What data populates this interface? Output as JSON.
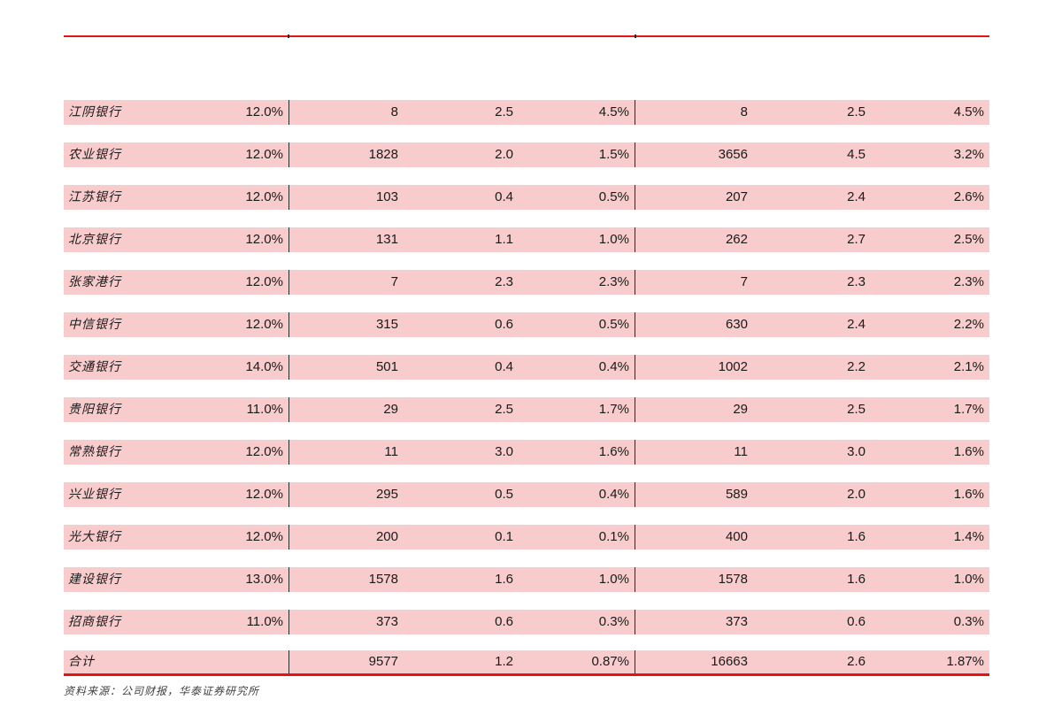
{
  "table": {
    "accent_rule_color": "#e21414",
    "row_background_color": "#f8cbcd",
    "divider_color": "#2b2b2b",
    "rows": [
      {
        "name": "江阴银行",
        "pct": "12.0%",
        "v1": "8",
        "v2": "2.5",
        "v3": "4.5%",
        "v4": "8",
        "v5": "2.5",
        "v6": "4.5%"
      },
      {
        "name": "农业银行",
        "pct": "12.0%",
        "v1": "1828",
        "v2": "2.0",
        "v3": "1.5%",
        "v4": "3656",
        "v5": "4.5",
        "v6": "3.2%"
      },
      {
        "name": "江苏银行",
        "pct": "12.0%",
        "v1": "103",
        "v2": "0.4",
        "v3": "0.5%",
        "v4": "207",
        "v5": "2.4",
        "v6": "2.6%"
      },
      {
        "name": "北京银行",
        "pct": "12.0%",
        "v1": "131",
        "v2": "1.1",
        "v3": "1.0%",
        "v4": "262",
        "v5": "2.7",
        "v6": "2.5%"
      },
      {
        "name": "张家港行",
        "pct": "12.0%",
        "v1": "7",
        "v2": "2.3",
        "v3": "2.3%",
        "v4": "7",
        "v5": "2.3",
        "v6": "2.3%"
      },
      {
        "name": "中信银行",
        "pct": "12.0%",
        "v1": "315",
        "v2": "0.6",
        "v3": "0.5%",
        "v4": "630",
        "v5": "2.4",
        "v6": "2.2%"
      },
      {
        "name": "交通银行",
        "pct": "14.0%",
        "v1": "501",
        "v2": "0.4",
        "v3": "0.4%",
        "v4": "1002",
        "v5": "2.2",
        "v6": "2.1%"
      },
      {
        "name": "贵阳银行",
        "pct": "11.0%",
        "v1": "29",
        "v2": "2.5",
        "v3": "1.7%",
        "v4": "29",
        "v5": "2.5",
        "v6": "1.7%"
      },
      {
        "name": "常熟银行",
        "pct": "12.0%",
        "v1": "11",
        "v2": "3.0",
        "v3": "1.6%",
        "v4": "11",
        "v5": "3.0",
        "v6": "1.6%"
      },
      {
        "name": "兴业银行",
        "pct": "12.0%",
        "v1": "295",
        "v2": "0.5",
        "v3": "0.4%",
        "v4": "589",
        "v5": "2.0",
        "v6": "1.6%"
      },
      {
        "name": "光大银行",
        "pct": "12.0%",
        "v1": "200",
        "v2": "0.1",
        "v3": "0.1%",
        "v4": "400",
        "v5": "1.6",
        "v6": "1.4%"
      },
      {
        "name": "建设银行",
        "pct": "13.0%",
        "v1": "1578",
        "v2": "1.6",
        "v3": "1.0%",
        "v4": "1578",
        "v5": "1.6",
        "v6": "1.0%"
      },
      {
        "name": "招商银行",
        "pct": "11.0%",
        "v1": "373",
        "v2": "0.6",
        "v3": "0.3%",
        "v4": "373",
        "v5": "0.6",
        "v6": "0.3%"
      },
      {
        "name": "合计",
        "pct": "",
        "v1": "9577",
        "v2": "1.2",
        "v3": "0.87%",
        "v4": "16663",
        "v5": "2.6",
        "v6": "1.87%",
        "total": true
      }
    ]
  },
  "footer": {
    "source": "资料来源：公司财报，华泰证券研究所"
  }
}
